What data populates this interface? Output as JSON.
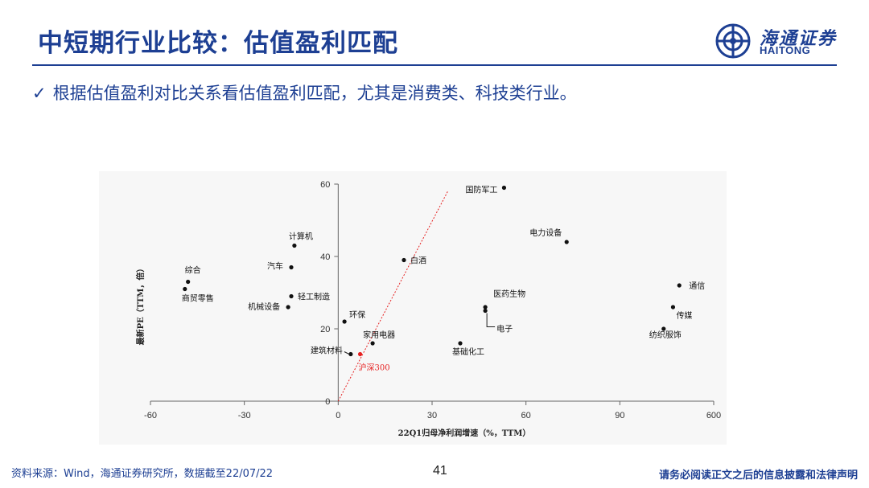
{
  "slide": {
    "title": "中短期行业比较：估值盈利匹配",
    "bullet_check": "✓",
    "bullet": "根据估值盈利对比关系看估值盈利匹配，尤其是消费类、科技类行业。",
    "logo_cn": "海通证券",
    "logo_en": "HAITONG",
    "source": "资料来源：Wind，海通证券研究所，数据截至22/07/22",
    "page_number": "41",
    "disclaimer": "请务必阅读正文之后的信息披露和法律声明"
  },
  "colors": {
    "brand_blue": "#1d3f93",
    "point": "#111111",
    "highlight": "#e62020",
    "trend_line": "#e62020"
  },
  "chart_data": {
    "type": "scatter",
    "xlabel": "22Q1归母净利润增速（%，TTM）",
    "ylabel": "最新PE（TTM，倍）",
    "x_ticks": [
      "-60",
      "-30",
      "0",
      "30",
      "60",
      "90",
      "600"
    ],
    "y_ticks": [
      "0",
      "20",
      "40",
      "60"
    ],
    "xlim": [
      -60,
      120
    ],
    "ylim": [
      0,
      60
    ],
    "x_axis_note": "broken axis: last tick labelled 600",
    "grid": false,
    "legend": "none",
    "points": [
      {
        "name": "国防军工",
        "x": 53,
        "y": 59
      },
      {
        "name": "电力设备",
        "x": 73,
        "y": 44
      },
      {
        "name": "白酒",
        "x": 21,
        "y": 39
      },
      {
        "name": "计算机",
        "x": -14,
        "y": 43
      },
      {
        "name": "汽车",
        "x": -15,
        "y": 37
      },
      {
        "name": "综合",
        "x": -48,
        "y": 33
      },
      {
        "name": "商贸零售",
        "x": -49,
        "y": 31
      },
      {
        "name": "轻工制造",
        "x": -15,
        "y": 29
      },
      {
        "name": "机械设备",
        "x": -16,
        "y": 26
      },
      {
        "name": "环保",
        "x": 2,
        "y": 22
      },
      {
        "name": "家用电器",
        "x": 11,
        "y": 16
      },
      {
        "name": "建筑材料",
        "x": 4,
        "y": 13
      },
      {
        "name": "沪深300",
        "x": 7,
        "y": 13,
        "highlight": true
      },
      {
        "name": "基础化工",
        "x": 39,
        "y": 16
      },
      {
        "name": "医药生物",
        "x": 47,
        "y": 26
      },
      {
        "name": "电子",
        "x": 47,
        "y": 25
      },
      {
        "name": "通信",
        "x": 109,
        "y": 32
      },
      {
        "name": "传媒",
        "x": 107,
        "y": 26
      },
      {
        "name": "纺织服饰",
        "x": 104,
        "y": 20
      }
    ],
    "trend_line": {
      "from": [
        0,
        0
      ],
      "to": [
        35,
        58
      ]
    }
  }
}
